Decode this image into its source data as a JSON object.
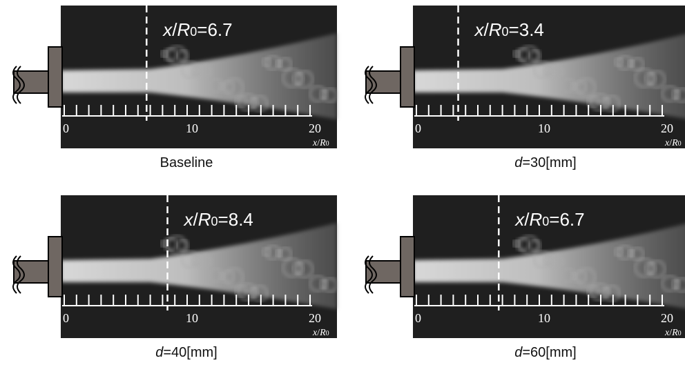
{
  "figure": {
    "axis": {
      "labels": [
        0,
        10,
        20
      ],
      "minor_ticks": [
        0,
        1,
        2,
        3,
        4,
        5,
        6,
        7,
        8,
        9,
        10,
        11,
        12,
        13,
        14,
        15,
        16,
        17,
        18,
        19,
        20
      ],
      "unit": [
        "x",
        "/",
        "R",
        "0"
      ]
    },
    "panels": [
      {
        "annotation": [
          "x",
          "/",
          "R",
          "0",
          "=6.7"
        ],
        "position": 6.7,
        "caption": [
          "Baseline"
        ]
      },
      {
        "annotation": [
          "x",
          "/",
          "R",
          "0",
          "=3.4"
        ],
        "position": 3.4,
        "caption": [
          "d",
          "=30[mm]"
        ]
      },
      {
        "annotation": [
          "x",
          "/",
          "R",
          "0",
          "=8.4"
        ],
        "position": 8.4,
        "caption": [
          "d",
          "=40[mm]"
        ]
      },
      {
        "annotation": [
          "x",
          "/",
          "R",
          "0",
          "=6.7"
        ],
        "position": 6.7,
        "caption": [
          "d",
          "=60[mm]"
        ]
      }
    ]
  }
}
